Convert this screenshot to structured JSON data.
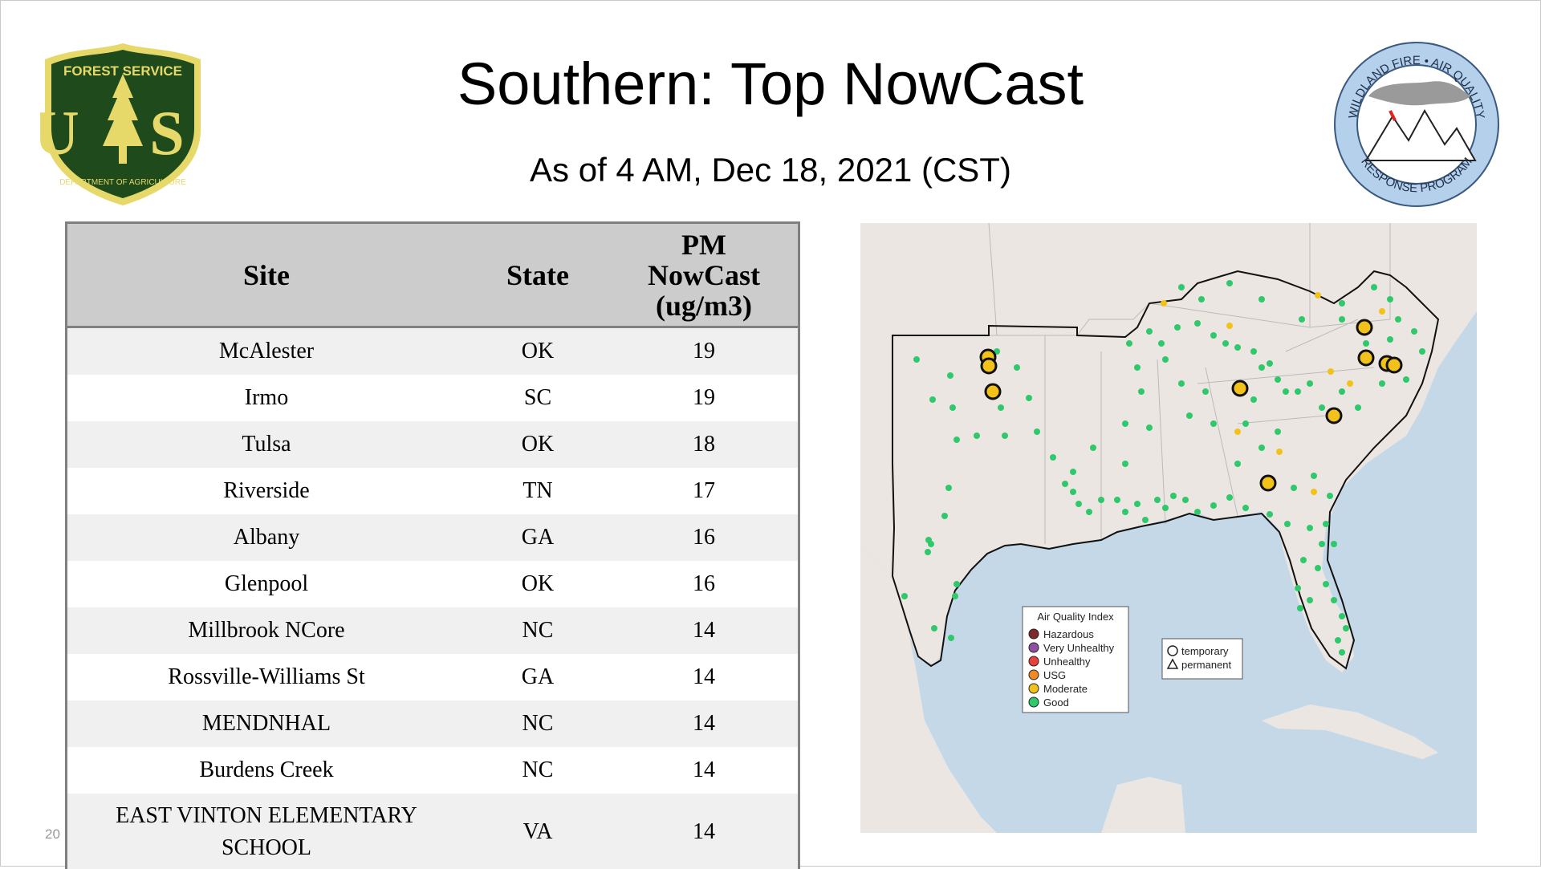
{
  "slide": {
    "title": "Southern: Top NowCast",
    "subtitle": "As of  4 AM, Dec 18, 2021 (CST)",
    "footer_number": "20"
  },
  "logos": {
    "left": {
      "top_text": "FOREST SERVICE",
      "letters": "U S",
      "bottom_text": "DEPARTMENT OF AGRICULTURE",
      "colors": {
        "green": "#1e4a1c",
        "gold": "#e6d96a"
      }
    },
    "right": {
      "top_text": "WILDLAND FIRE • AIR QUALITY",
      "bottom_text": "RESPONSE PROGRAM",
      "colors": {
        "ring": "#b4d0ea"
      }
    }
  },
  "table": {
    "headers": {
      "site": "Site",
      "state": "State",
      "pm_line1": "PM",
      "pm_line2": "NowCast",
      "pm_line3": "(ug/m3)"
    },
    "rows": [
      {
        "site": "McAlester",
        "state": "OK",
        "pm": "19"
      },
      {
        "site": "Irmo",
        "state": "SC",
        "pm": "19"
      },
      {
        "site": "Tulsa",
        "state": "OK",
        "pm": "18"
      },
      {
        "site": "Riverside",
        "state": "TN",
        "pm": "17"
      },
      {
        "site": "Albany",
        "state": "GA",
        "pm": "16"
      },
      {
        "site": "Glenpool",
        "state": "OK",
        "pm": "16"
      },
      {
        "site": "Millbrook NCore",
        "state": "NC",
        "pm": "14"
      },
      {
        "site": "Rossville-Williams St",
        "state": "GA",
        "pm": "14"
      },
      {
        "site": "MENDNHAL",
        "state": "NC",
        "pm": "14"
      },
      {
        "site": "Burdens Creek",
        "state": "NC",
        "pm": "14"
      },
      {
        "site_line1": "EAST VINTON ELEMENTARY",
        "site_line2": "SCHOOL",
        "state": "VA",
        "pm": "14"
      }
    ]
  },
  "map": {
    "legend_title": "Air Quality Index",
    "legend": [
      {
        "label": "Hazardous",
        "color": "#7e2a2a"
      },
      {
        "label": "Very Unhealthy",
        "color": "#8f4fa3"
      },
      {
        "label": "Unhealthy",
        "color": "#e8413a"
      },
      {
        "label": "USG",
        "color": "#f08a24"
      },
      {
        "label": "Moderate",
        "color": "#f2c21a"
      },
      {
        "label": "Good",
        "color": "#2fc86b"
      }
    ],
    "shape_legend": [
      {
        "label": "temporary",
        "shape": "circle"
      },
      {
        "label": "permanent",
        "shape": "triangle"
      }
    ],
    "colors": {
      "water": "#c5d8e8",
      "land": "#ebe6e2",
      "good": "#2fc86b",
      "moderate": "#f2c21a"
    }
  }
}
